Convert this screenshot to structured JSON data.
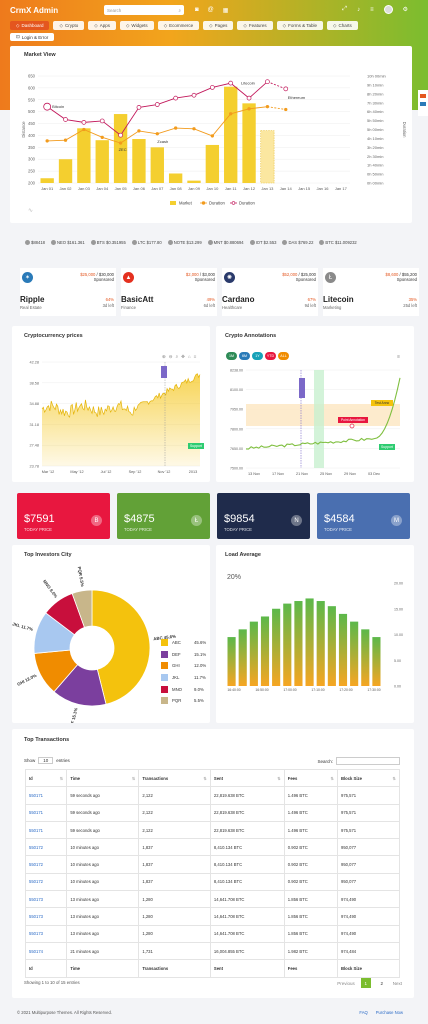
{
  "header": {
    "logo": "CrmX Admin",
    "search_placeholder": "Search",
    "nav": [
      {
        "label": "Dashboard",
        "active": true
      },
      {
        "label": "Crypto"
      },
      {
        "label": "Apps"
      },
      {
        "label": "Widgets"
      },
      {
        "label": "Ecommerce"
      },
      {
        "label": "Pages"
      },
      {
        "label": "Features"
      },
      {
        "label": "Forms & Table"
      },
      {
        "label": "Charts"
      }
    ],
    "nav2": "Login & Error"
  },
  "market_view": {
    "title": "Market View",
    "chart_data": {
      "type": "bar",
      "categories": [
        "Jan 01",
        "Jan 02",
        "Jan 03",
        "Jan 04",
        "Jan 05",
        "Jan 06",
        "Jan 07",
        "Jan 08",
        "Jan 09",
        "Jan 10",
        "Jan 11",
        "Jan 12",
        "Jan 13",
        "Jan 14",
        "Jan 15",
        "Jan 16",
        "Jan 17"
      ],
      "series": [
        {
          "name": "Market",
          "type": "bar",
          "values": [
            220,
            300,
            430,
            380,
            490,
            385,
            350,
            240,
            210,
            360,
            605,
            535,
            420,
            null,
            null,
            null,
            null
          ]
        },
        {
          "name": "Duration",
          "type": "line",
          "values": [
            590,
            600,
            750,
            640,
            560,
            730,
            690,
            770,
            760,
            660,
            970,
            1040,
            1070,
            1030,
            null,
            null,
            null
          ]
        },
        {
          "name": "Duration",
          "type": "line",
          "values": [
            1070,
            890,
            850,
            870,
            670,
            1060,
            1100,
            1190,
            1230,
            1340,
            1400,
            1190,
            1420,
            1320,
            null,
            null,
            null
          ]
        }
      ],
      "y_left": {
        "label": "Distance",
        "ticks": [
          200,
          250,
          300,
          350,
          400,
          450,
          500,
          550,
          600,
          650
        ],
        "range": [
          200,
          650
        ]
      },
      "y_right": {
        "label": "Duration",
        "ticks": [
          "0h 00min",
          "0h 50min",
          "1h 40min",
          "2h 30min",
          "3h 20min",
          "4h 10min",
          "5h 00min",
          "5h 50min",
          "6h 40min",
          "7h 30min",
          "8h 20min",
          "9h 10min",
          "10h 00min"
        ]
      },
      "annotations": [
        "Bitcoin",
        "Zcash",
        "ZEC",
        "Litecoin",
        "Ethereum"
      ],
      "legend": [
        "Market",
        "Duration",
        "Duration"
      ]
    }
  },
  "ticker": [
    {
      "name": "$88418"
    },
    {
      "name": "NEO $161.361"
    },
    {
      "name": "BTS $0.351955"
    },
    {
      "name": "LTC $177.80"
    },
    {
      "name": "NOTE $13.299"
    },
    {
      "name": "MNT $0.880694"
    },
    {
      "name": "IOT $2.553"
    },
    {
      "name": "DAS $769.22"
    },
    {
      "name": "BTC $11.009232"
    }
  ],
  "coins": [
    {
      "name": "Ripple",
      "cat": "Real Estate",
      "price": "$25,000",
      "total": "$30,000",
      "sub": "Sponsored",
      "pct": "64%",
      "left": "3d left",
      "color": "#2a7ab8",
      "icon": "ripple-icon",
      "glyph": "✶"
    },
    {
      "name": "BasicAtt",
      "cat": "Finance",
      "price": "$2,000",
      "total": "$3,000",
      "sub": "Sponsored",
      "pct": "49%",
      "left": "6d left",
      "color": "#e4301f",
      "icon": "basicatt-icon",
      "glyph": "▲"
    },
    {
      "name": "Cardano",
      "cat": "Healthcare",
      "price": "$52,000",
      "total": "$25,000",
      "sub": "Sponsored",
      "pct": "67%",
      "left": "9d left",
      "color": "#2a3a6b",
      "icon": "cardano-icon",
      "glyph": "✺"
    },
    {
      "name": "Litecoin",
      "cat": "Marketing",
      "price": "$8,600",
      "total": "$55,200",
      "sub": "Sponsored",
      "pct": "35%",
      "left": "25d left",
      "color": "#8a8a8a",
      "icon": "litecoin-icon",
      "glyph": "Ł"
    }
  ],
  "crypto_prices": {
    "title": "Cryptocurrency prices",
    "chart_data": {
      "type": "area",
      "y_ticks": [
        "42.28",
        "38.58",
        "34.88",
        "31.18",
        "27.48",
        "23.78"
      ],
      "x_ticks": [
        "Mar '12",
        "May '12",
        "Jul '12",
        "Sep '12",
        "Nov '12",
        "2013"
      ],
      "annotations": [
        "Support"
      ]
    }
  },
  "crypto_annotations": {
    "title": "Crypto Annotations",
    "tabs": [
      "1M",
      "6M",
      "1Y",
      "YTD",
      "ALL"
    ],
    "chart_data": {
      "type": "line",
      "y_ticks": [
        "8238.00",
        "8100.00",
        "7950.00",
        "7800.00",
        "7650.00",
        "7500.00"
      ],
      "x_ticks": [
        "13 Nov",
        "17 Nov",
        "21 Nov",
        "25 Nov",
        "29 Nov",
        "03 Dec"
      ],
      "annotations": [
        "Point Annotation",
        "Test Anno",
        "Support"
      ]
    }
  },
  "stats": [
    {
      "value": "$7591",
      "label": "TODAY PRICE",
      "color": "#e8173f",
      "glyph": "B",
      "icon": "bitcoin-icon"
    },
    {
      "value": "$4875",
      "label": "TODAY PRICE",
      "color": "#62a137",
      "glyph": "Ł",
      "icon": "litecoin-icon"
    },
    {
      "value": "$9854",
      "label": "TODAY PRICE",
      "color": "#1f2b4b",
      "glyph": "N",
      "icon": "neo-icon"
    },
    {
      "value": "$4584",
      "label": "TODAY PRICE",
      "color": "#4a6fb0",
      "glyph": "M",
      "icon": "monero-icon"
    }
  ],
  "investors": {
    "title": "Top Investors City",
    "chart_data": {
      "type": "pie",
      "slices": [
        {
          "name": "ABC",
          "value": 45.6,
          "color": "#f4c20d"
        },
        {
          "name": "DEF",
          "value": 15.1,
          "color": "#7b3f9e"
        },
        {
          "name": "GHI",
          "value": 12.0,
          "color": "#f08c00"
        },
        {
          "name": "JKL",
          "value": 11.7,
          "color": "#a8c8f0"
        },
        {
          "name": "MNO",
          "value": 9.0,
          "color": "#c80f3c"
        },
        {
          "name": "PQR",
          "value": 5.5,
          "color": "#c8b68a"
        }
      ],
      "labels": [
        "45.6%",
        "15.1%",
        "12.0%",
        "11.7%",
        "9.0%",
        "5.5%"
      ]
    }
  },
  "load_average": {
    "title": "Load Average",
    "value": "20%",
    "chart_data": {
      "type": "bar",
      "values": [
        9.5,
        11,
        12.5,
        13.5,
        15,
        16,
        16.5,
        17,
        16.5,
        15.5,
        14,
        12.5,
        11,
        9.5
      ],
      "y_ticks": [
        "20.00",
        "15.00",
        "10.00",
        "5.00",
        "0.00"
      ],
      "x_ticks": [
        "16:40:00",
        "16:50:00",
        "17:00:00",
        "17:10:00",
        "17:20:00",
        "17:30:00"
      ],
      "ylim": [
        0,
        20
      ]
    }
  },
  "transactions": {
    "title": "Top Transactions",
    "show_label": "Show",
    "show_value": "10",
    "entries_label": "entries",
    "search_label": "Search:",
    "columns": [
      "Id",
      "Time",
      "Transactions",
      "Sent",
      "Fees",
      "Block Size"
    ],
    "rows": [
      [
        "550171",
        "59 seconds ago",
        "2,122",
        "22,819.638 BTC",
        "1.496 BTC",
        "975,571"
      ],
      [
        "550171",
        "59 seconds ago",
        "2,122",
        "22,819.638 BTC",
        "1.496 BTC",
        "975,571"
      ],
      [
        "550171",
        "59 seconds ago",
        "2,122",
        "22,819.638 BTC",
        "1.496 BTC",
        "975,571"
      ],
      [
        "550172",
        "10 minutes ago",
        "1,837",
        "8,410.134 BTC",
        "0.902 BTC",
        "950,077"
      ],
      [
        "550172",
        "10 minutes ago",
        "1,837",
        "8,410.134 BTC",
        "0.902 BTC",
        "950,077"
      ],
      [
        "550172",
        "10 minutes ago",
        "1,837",
        "8,410.134 BTC",
        "0.902 BTC",
        "950,077"
      ],
      [
        "550173",
        "13 minutes ago",
        "1,280",
        "14,641.708 BTC",
        "1.856 BTC",
        "974,490"
      ],
      [
        "550173",
        "13 minutes ago",
        "1,280",
        "14,641.708 BTC",
        "1.856 BTC",
        "974,490"
      ],
      [
        "550173",
        "13 minutes ago",
        "1,280",
        "14,641.708 BTC",
        "1.856 BTC",
        "974,490"
      ],
      [
        "550174",
        "21 minutes ago",
        "1,731",
        "16,004.855 BTC",
        "1.982 BTC",
        "974,484"
      ]
    ],
    "footer_cols": [
      "Id",
      "Time",
      "Transactions",
      "Sent",
      "Fees",
      "Block Size"
    ],
    "info": "Showing 1 to 10 of 15 entries",
    "prev": "Previous",
    "next": "Next",
    "pages": [
      "1",
      "2"
    ]
  },
  "footer": {
    "copyright": "© 2021 Multipurpose Themes. All Rights Reserved.",
    "links": [
      "FAQ",
      "Purchase Now"
    ]
  }
}
